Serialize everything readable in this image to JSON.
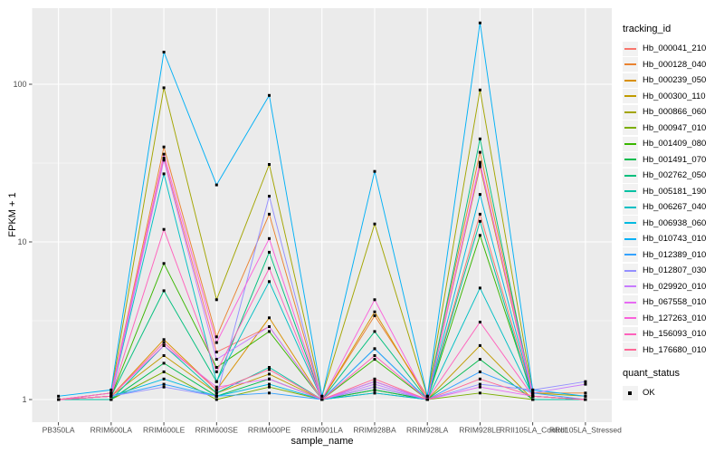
{
  "chart_data": {
    "type": "line",
    "title": "",
    "xlabel": "sample_name",
    "ylabel": "FPKM + 1",
    "y_scale": "log10",
    "y_ticks": [
      1,
      10,
      100
    ],
    "y_minor_ticks": [
      3.1623,
      31.623
    ],
    "ylim": [
      0.9,
      300
    ],
    "grid": true,
    "legend_position": "right",
    "panel_bg": "#EBEBEB",
    "grid_color": "#FFFFFF",
    "tick_label_color": "#4D4D4D",
    "point_color": "#000000",
    "point_shape": "square",
    "categories": [
      "PB350LA",
      "RRIM600LA",
      "RRIM600LE",
      "RRIM600SE",
      "RRIM600PE",
      "RRIM901LA",
      "RRIM928BA",
      "RRIM928LA",
      "RRIM928LE",
      "RRII105LA_Control",
      "RRII105LA_Stressed"
    ],
    "legend_title": "tracking_id",
    "series": [
      {
        "name": "Hb_000041_210",
        "color": "#F8766D",
        "values": [
          1,
          1.05,
          34,
          2.0,
          2.9,
          1,
          1.2,
          1,
          15,
          1.05,
          1
        ]
      },
      {
        "name": "Hb_000128_040",
        "color": "#EA8331",
        "values": [
          1,
          1.1,
          40,
          2.5,
          15,
          1,
          3.4,
          1.05,
          37,
          1.1,
          1.1
        ]
      },
      {
        "name": "Hb_000239_050",
        "color": "#D89000",
        "values": [
          1,
          1.05,
          2.4,
          1.15,
          3.3,
          1,
          3.6,
          1,
          30,
          1.05,
          1
        ]
      },
      {
        "name": "Hb_000300_110",
        "color": "#C09B00",
        "values": [
          1,
          1.05,
          1.9,
          1.1,
          1.45,
          1,
          1.15,
          1,
          2.2,
          1,
          1
        ]
      },
      {
        "name": "Hb_000866_060",
        "color": "#A3A500",
        "values": [
          1,
          1.1,
          95,
          4.3,
          31,
          1.05,
          13,
          1.05,
          92,
          1.1,
          1.05
        ]
      },
      {
        "name": "Hb_000947_010",
        "color": "#7CAE00",
        "values": [
          1,
          1,
          1.5,
          1,
          1.2,
          1,
          1.1,
          1,
          1.1,
          1,
          1
        ]
      },
      {
        "name": "Hb_001409_080",
        "color": "#39B600",
        "values": [
          1,
          1.05,
          7.3,
          1.6,
          2.7,
          1,
          1.8,
          1,
          11,
          1.05,
          1
        ]
      },
      {
        "name": "Hb_001491_070",
        "color": "#00BB4E",
        "values": [
          1,
          1,
          1.7,
          1.05,
          1.35,
          1,
          1.15,
          1,
          1.8,
          1,
          1
        ]
      },
      {
        "name": "Hb_002762_050",
        "color": "#00BF7D",
        "values": [
          1,
          1.05,
          4.9,
          1.3,
          8.6,
          1,
          2.7,
          1,
          45,
          1.05,
          1
        ]
      },
      {
        "name": "Hb_005181_190",
        "color": "#00C1A3",
        "values": [
          1,
          1,
          2.2,
          1.1,
          1.6,
          1,
          1.3,
          1,
          13.5,
          1,
          1
        ]
      },
      {
        "name": "Hb_006267_040",
        "color": "#00BFC4",
        "values": [
          1,
          1.05,
          27,
          1.3,
          5.6,
          1,
          2.1,
          1,
          5.1,
          1.05,
          1
        ]
      },
      {
        "name": "Hb_006938_060",
        "color": "#00BAE0",
        "values": [
          1,
          1.05,
          1.35,
          1.05,
          1.25,
          1,
          1.1,
          1,
          20,
          1.05,
          1
        ]
      },
      {
        "name": "Hb_010743_010",
        "color": "#00B0F6",
        "values": [
          1.05,
          1.15,
          160,
          23,
          85,
          1.05,
          28,
          1.05,
          245,
          1.15,
          1.05
        ]
      },
      {
        "name": "Hb_012389_010",
        "color": "#35A2FF",
        "values": [
          1,
          1.05,
          1.25,
          1.05,
          1.1,
          1,
          2.1,
          1,
          1.5,
          1.1,
          1
        ]
      },
      {
        "name": "Hb_012807_030",
        "color": "#9590FF",
        "values": [
          1,
          1.05,
          1.2,
          1.05,
          19.5,
          1,
          1.2,
          1,
          1.25,
          1.15,
          1.3
        ]
      },
      {
        "name": "Hb_029920_010",
        "color": "#C77CFF",
        "values": [
          1,
          1.05,
          33,
          1.8,
          2.9,
          1,
          1.25,
          1,
          31,
          1.1,
          1.25
        ]
      },
      {
        "name": "Hb_067558_010",
        "color": "#E76BF3",
        "values": [
          1,
          1.05,
          2.2,
          1.2,
          1.35,
          1,
          1.3,
          1,
          1.2,
          1.05,
          1
        ]
      },
      {
        "name": "Hb_127263_010",
        "color": "#FA62DB",
        "values": [
          1,
          1.1,
          36,
          2.3,
          10.5,
          1,
          4.3,
          1,
          32,
          1.05,
          1
        ]
      },
      {
        "name": "Hb_156093_010",
        "color": "#FF62BC",
        "values": [
          1,
          1.05,
          12,
          1.5,
          6.8,
          1,
          1.9,
          1,
          3.1,
          1.05,
          1
        ]
      },
      {
        "name": "Hb_176680_010",
        "color": "#FF6A98",
        "values": [
          1,
          1.05,
          2.3,
          1.15,
          1.55,
          1,
          1.35,
          1,
          1.35,
          1.05,
          1
        ]
      }
    ],
    "legend2": {
      "title": "quant_status",
      "items": [
        {
          "label": "OK",
          "marker": "black-square"
        }
      ]
    }
  }
}
